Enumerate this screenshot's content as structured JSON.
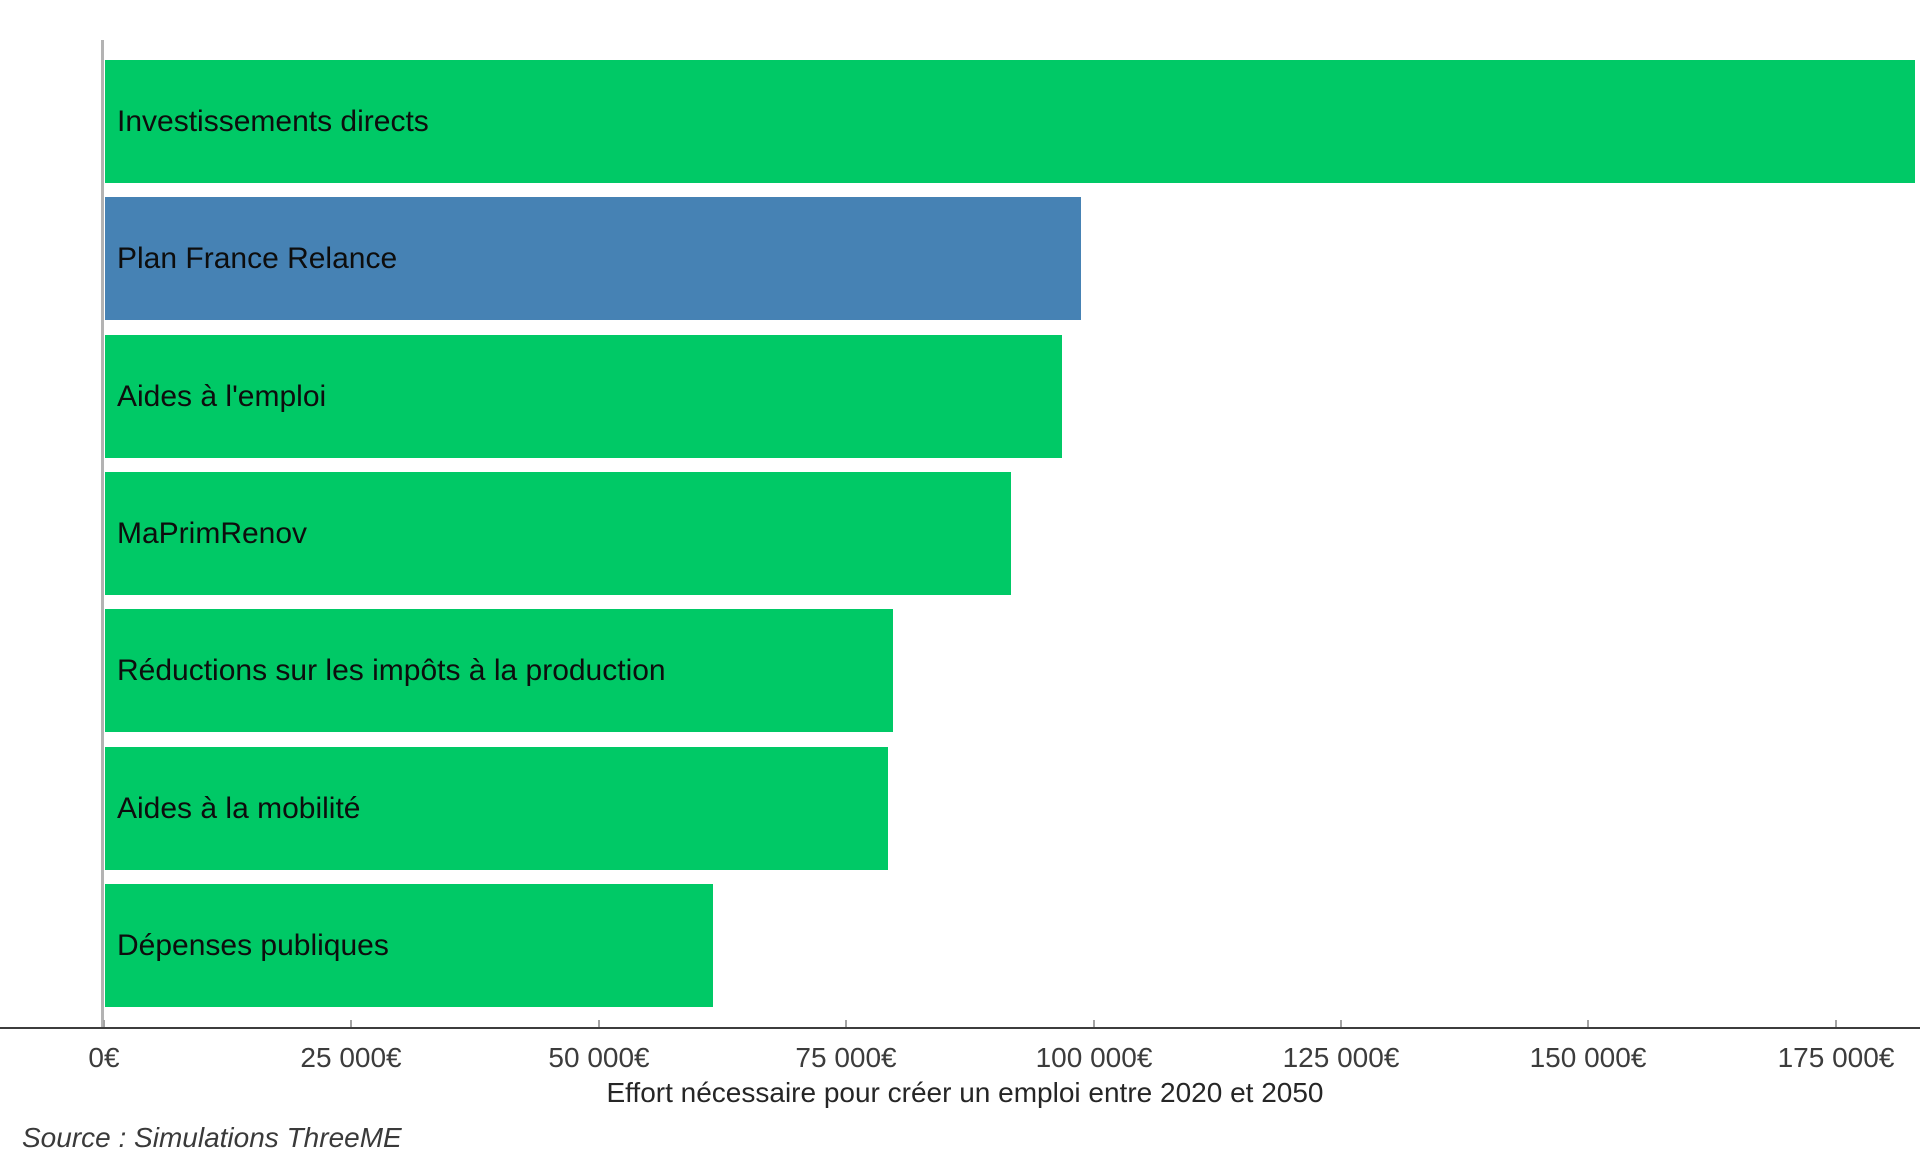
{
  "chart_data": {
    "type": "bar",
    "orientation": "horizontal",
    "title": "",
    "xlabel": "Effort nécessaire pour créer un emploi entre 2020 et 2050",
    "ylabel": "",
    "xlim": [
      0,
      183000
    ],
    "grid": false,
    "legend": "none",
    "categories": [
      "Investissements directs",
      "Plan France Relance",
      "Aides à l'emploi",
      "MaPrimRenov",
      "Réductions sur les impôts à la production",
      "Aides à la mobilité",
      "Dépenses publiques"
    ],
    "values": [
      183000,
      98700,
      96800,
      91700,
      79700,
      79200,
      61500
    ],
    "bar_colors": [
      "#00C966",
      "#4682B4",
      "#00C966",
      "#00C966",
      "#00C966",
      "#00C966",
      "#00C966"
    ],
    "highlighted_category": "Plan France Relance",
    "x_ticks": [
      {
        "value": 0,
        "label": "0€"
      },
      {
        "value": 25000,
        "label": "25 000€"
      },
      {
        "value": 50000,
        "label": "50 000€"
      },
      {
        "value": 75000,
        "label": "75 000€"
      },
      {
        "value": 100000,
        "label": "100 000€"
      },
      {
        "value": 125000,
        "label": "125 000€"
      },
      {
        "value": 150000,
        "label": "150 000€"
      },
      {
        "value": 175000,
        "label": "175 000€"
      }
    ]
  },
  "colors": {
    "bar_green": "#00C966",
    "bar_blue": "#4682B4",
    "axis_line": "#3c3c3c",
    "tick_mark": "#a3a3a3",
    "y_axis_line": "#b3b3b3",
    "label_text": "#0d0d0d"
  },
  "source_text": "Source : Simulations ThreeME"
}
